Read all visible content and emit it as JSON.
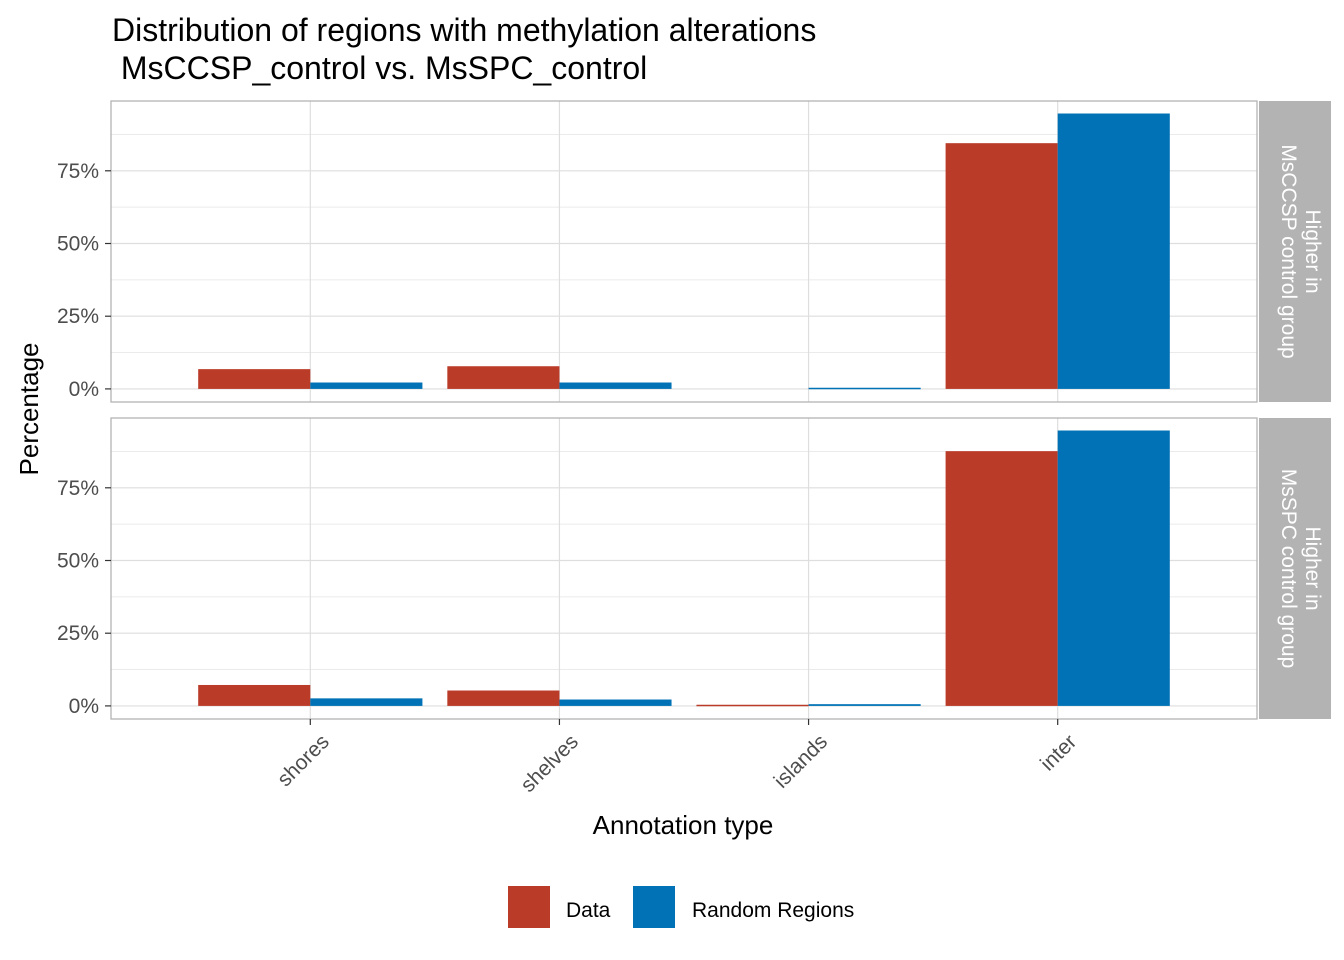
{
  "chart_data": {
    "type": "bar",
    "title_line1": "Distribution of regions with methylation alterations",
    "title_line2": " MsCCSP_control vs. MsSPC_control",
    "xlabel": "Annotation type",
    "ylabel": "Percentage",
    "categories": [
      "shores",
      "shelves",
      "islands",
      "inter"
    ],
    "y_ticks": [
      "0%",
      "25%",
      "50%",
      "75%"
    ],
    "ylim": [
      -0.045,
      0.99
    ],
    "grid": true,
    "legend_position": "bottom",
    "series_names": [
      "Data",
      "Random Regions"
    ],
    "colors": {
      "Data": "#BB3B29",
      "Random Regions": "#0072B5",
      "strip": "#B3B3B3"
    },
    "panels": [
      {
        "strip_line1": "Higher in",
        "strip_line2": "MsCCSP control group",
        "series": [
          {
            "name": "Data",
            "values": [
              0.068,
              0.078,
              0.0,
              0.845
            ]
          },
          {
            "name": "Random Regions",
            "values": [
              0.022,
              0.022,
              0.004,
              0.947
            ]
          }
        ]
      },
      {
        "strip_line1": "Higher in",
        "strip_line2": "MsSPC control group",
        "series": [
          {
            "name": "Data",
            "values": [
              0.072,
              0.053,
              0.004,
              0.876
            ]
          },
          {
            "name": "Random Regions",
            "values": [
              0.026,
              0.022,
              0.006,
              0.947
            ]
          }
        ]
      }
    ]
  }
}
